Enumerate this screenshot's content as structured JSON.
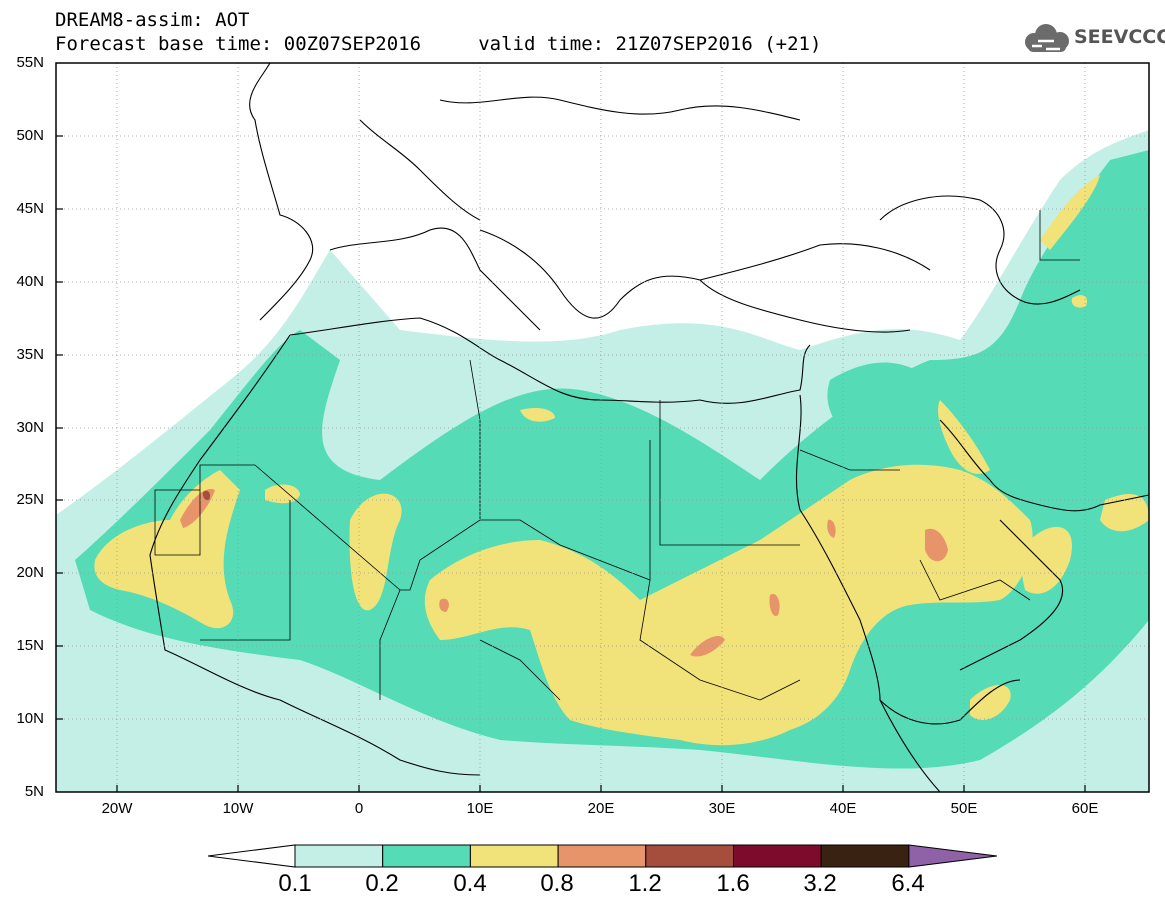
{
  "header": {
    "line1": "DREAM8-assim: AOT",
    "line2": "Forecast base time: 00Z07SEP2016     valid time: 21Z07SEP2016 (+21)"
  },
  "logo": {
    "text": "SEEVCCC",
    "icon": "cloud-icon"
  },
  "map": {
    "lon_range": [
      -25,
      65
    ],
    "lat_range": [
      5,
      55
    ],
    "lat_labels": [
      "55N",
      "50N",
      "45N",
      "40N",
      "35N",
      "30N",
      "25N",
      "20N",
      "15N",
      "10N",
      "5N"
    ],
    "lon_labels": [
      "20W",
      "10W",
      "0",
      "10E",
      "20E",
      "30E",
      "40E",
      "50E",
      "60E"
    ]
  },
  "colorbar": {
    "labels": [
      "0.1",
      "0.2",
      "0.4",
      "0.8",
      "1.2",
      "1.6",
      "3.2",
      "6.4"
    ],
    "colors": [
      "#ffffff",
      "#c4efe7",
      "#55dcb6",
      "#f2e27a",
      "#e8946a",
      "#a64e3e",
      "#7c0b2c",
      "#3a2212",
      "#8f62a8"
    ]
  }
}
